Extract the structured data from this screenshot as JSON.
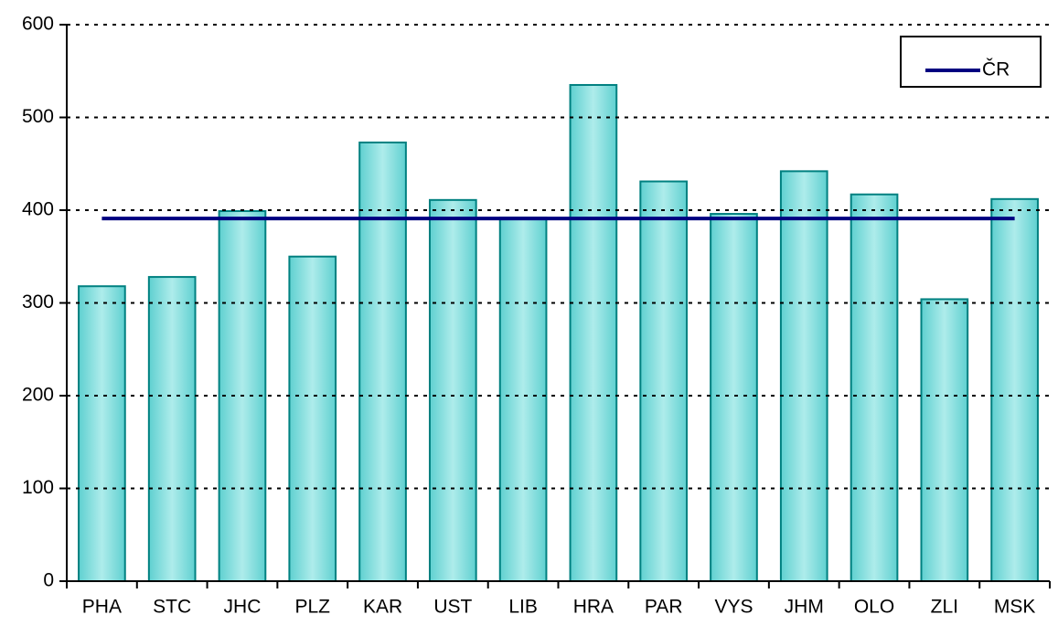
{
  "chart_data": {
    "type": "bar",
    "categories": [
      "PHA",
      "STC",
      "JHC",
      "PLZ",
      "KAR",
      "UST",
      "LIB",
      "HRA",
      "PAR",
      "VYS",
      "JHM",
      "OLO",
      "ZLI",
      "MSK"
    ],
    "values": [
      318,
      328,
      399,
      350,
      473,
      411,
      392,
      535,
      431,
      396,
      442,
      417,
      304,
      412
    ],
    "color": "#7fdcdc",
    "edge_color": "#008080",
    "series": [
      {
        "name": "ČR",
        "type": "line",
        "color": "#000080",
        "values": [
          391,
          391,
          391,
          391,
          391,
          391,
          391,
          391,
          391,
          391,
          391,
          391,
          391,
          391
        ]
      }
    ],
    "ylim": [
      0,
      600
    ],
    "yticks": [
      0,
      100,
      200,
      300,
      400,
      500,
      600
    ],
    "grid": true,
    "legend": "upper right"
  }
}
